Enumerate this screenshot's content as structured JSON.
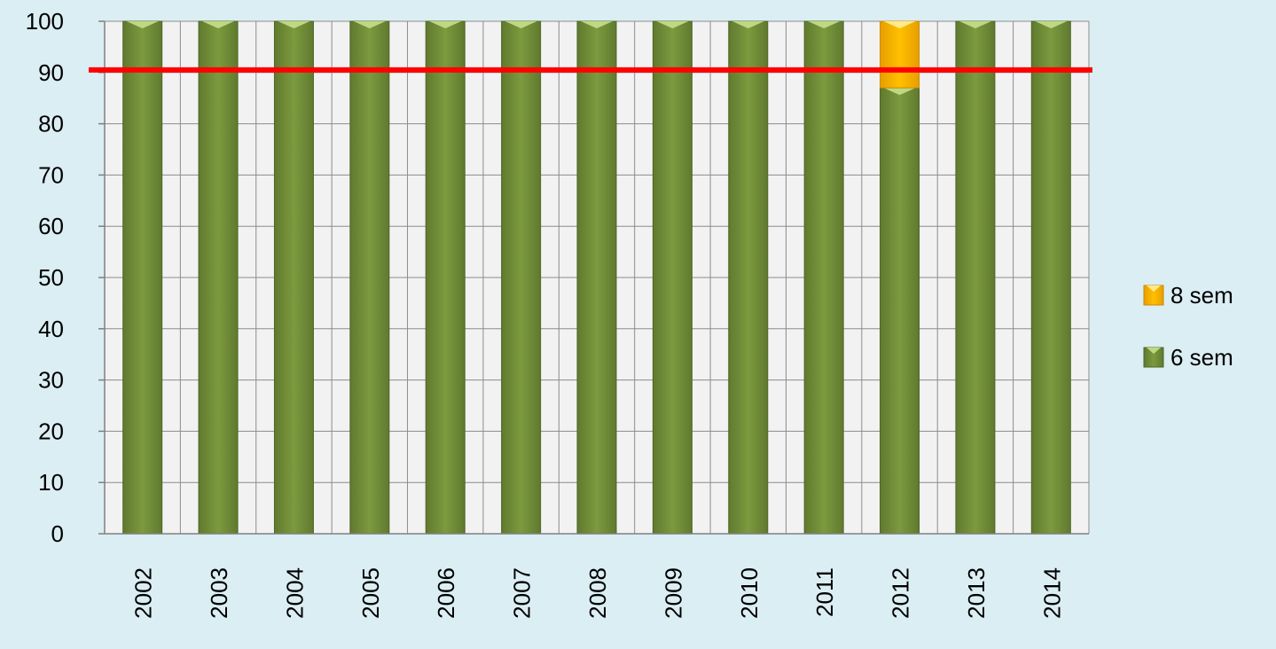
{
  "chart_data": {
    "type": "bar",
    "stacked": true,
    "categories": [
      "2002",
      "2003",
      "2004",
      "2005",
      "2006",
      "2007",
      "2008",
      "2009",
      "2010",
      "2011",
      "2012",
      "2013",
      "2014"
    ],
    "series": [
      {
        "name": "6 sem",
        "color": "#77933c",
        "values": [
          100,
          100,
          100,
          100,
          100,
          100,
          100,
          100,
          100,
          100,
          87,
          100,
          100
        ]
      },
      {
        "name": "8 sem",
        "color": "#ffc000",
        "values": [
          0,
          0,
          0,
          0,
          0,
          0,
          0,
          0,
          0,
          0,
          13,
          0,
          0
        ]
      }
    ],
    "reference_line": {
      "value": 90.5,
      "color": "#ff0000"
    },
    "ylim": [
      0,
      100
    ],
    "y_ticks": [
      0,
      10,
      20,
      30,
      40,
      50,
      60,
      70,
      80,
      90,
      100
    ],
    "grid": true,
    "legend_position": "right",
    "legend_order": [
      "8 sem",
      "6 sem"
    ],
    "title": "",
    "xlabel": "",
    "ylabel": ""
  }
}
